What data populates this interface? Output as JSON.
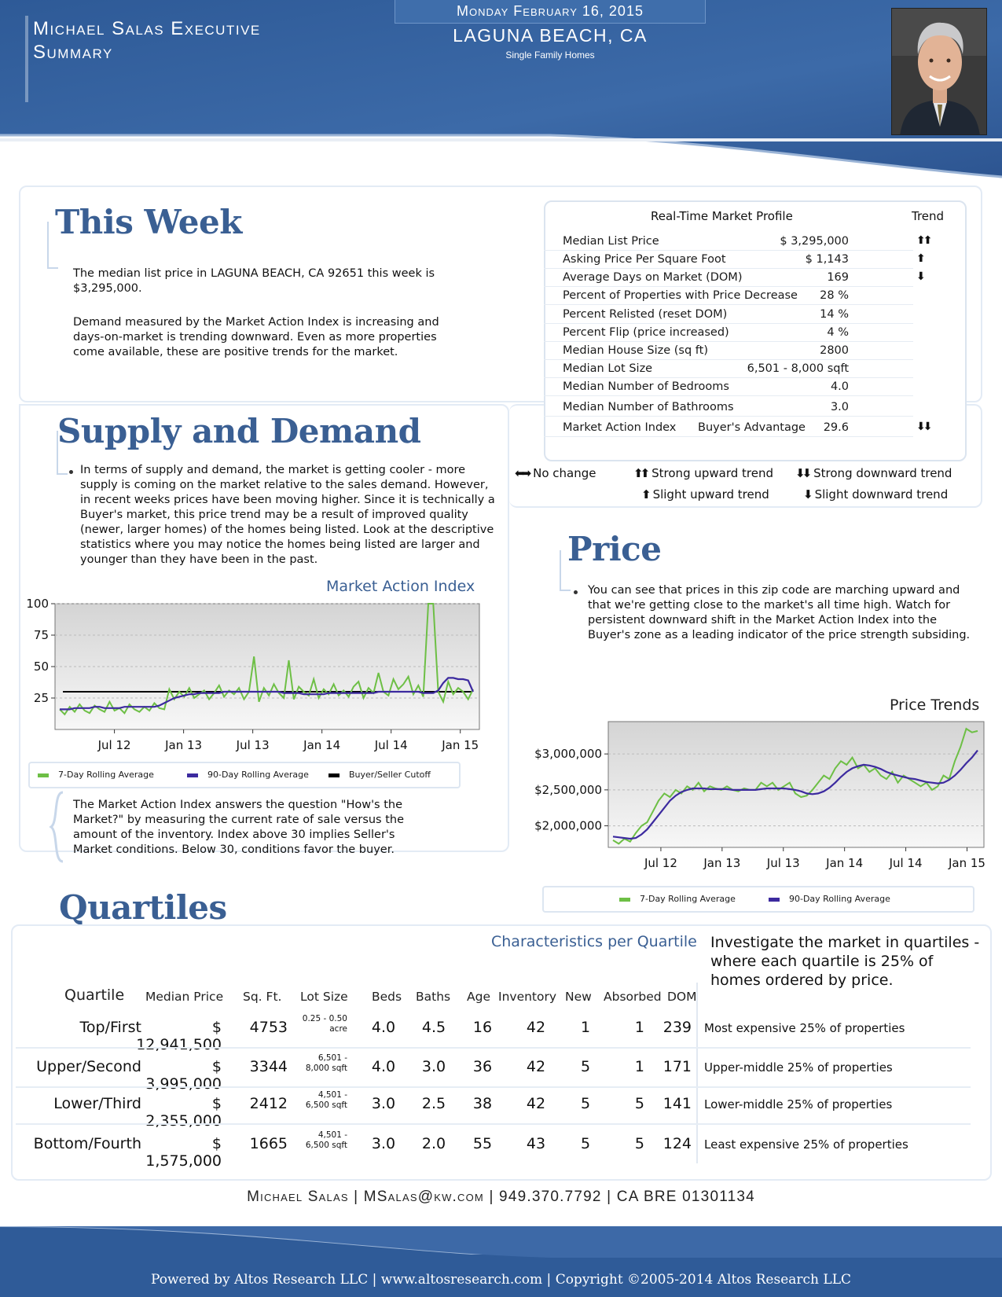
{
  "header": {
    "exec_title_line1": "Michael Salas Executive",
    "exec_title_line2": "Summary",
    "date": "Monday February 16, 2015",
    "location": "LAGUNA BEACH, CA",
    "property_type": "Single Family Homes"
  },
  "this_week": {
    "title": "This Week",
    "para1": "The median list price in LAGUNA BEACH, CA 92651 this week is $3,295,000.",
    "para2": "Demand measured by the Market Action Index is increasing and days-on-market is trending downward. Even as more properties come available, these are positive trends for the market."
  },
  "market_profile": {
    "heading": "Real-Time Market Profile",
    "trend_heading": "Trend",
    "rows": [
      {
        "label": "Median List Price",
        "value": "$ 3,295,000",
        "trend": "⬆⬆"
      },
      {
        "label": "Asking Price Per Square Foot",
        "value": "$ 1,143",
        "trend": "⬆"
      },
      {
        "label": "Average Days on Market (DOM)",
        "value": "169",
        "trend": "⬇"
      },
      {
        "label": "Percent of Properties with Price Decrease",
        "value": "28 %",
        "trend": ""
      },
      {
        "label": "Percent Relisted (reset DOM)",
        "value": "14 %",
        "trend": ""
      },
      {
        "label": "Percent Flip (price increased)",
        "value": "4 %",
        "trend": ""
      },
      {
        "label": "Median House Size (sq ft)",
        "value": "2800",
        "trend": ""
      },
      {
        "label": "Median Lot Size",
        "value": "6,501 - 8,000 sqft",
        "trend": ""
      },
      {
        "label": "Median Number of Bedrooms",
        "value": "4.0",
        "trend": ""
      },
      {
        "label": "Median Number of Bathrooms",
        "value": "3.0",
        "trend": ""
      },
      {
        "label": "Market Action Index",
        "label2": "Buyer's Advantage",
        "value": "29.6",
        "trend": "⬇⬇"
      }
    ]
  },
  "trend_legend": {
    "no_change": {
      "sym": "⬅➡",
      "label": "No change"
    },
    "strong_up": {
      "sym": "⬆⬆",
      "label": "Strong upward trend"
    },
    "strong_down": {
      "sym": "⬇⬇",
      "label": "Strong downward trend"
    },
    "slight_up": {
      "sym": "⬆",
      "label": "Slight upward trend"
    },
    "slight_down": {
      "sym": "⬇",
      "label": "Slight downward trend"
    }
  },
  "supply_demand": {
    "title": "Supply and Demand",
    "text": "In terms of supply and demand, the market is getting cooler - more supply is coming on the market relative to the sales demand. However, in recent weeks prices have been moving higher. Since it is technically a Buyer's market, this price trend may be a result of improved quality (newer, larger homes) of the homes being listed. Look at the descriptive statistics where you may notice the homes being listed are larger and younger than they have been in the past.",
    "note": "The Market Action Index answers the question \"How's the Market?\" by measuring the current rate of sale versus the amount of the inventory.  Index above 30 implies Seller's Market conditions. Below 30, conditions favor the buyer."
  },
  "price": {
    "title": "Price",
    "text": "You can see that prices in this zip code are marching upward and that we're getting close to the market's all time high. Watch for persistent downward shift in the Market Action Index into the Buyer's zone as a leading indicator of the price strength subsiding."
  },
  "colors": {
    "green": "#6dbf45",
    "purple": "#3c2a9f",
    "blue": "#3a5f93"
  },
  "chart_data": [
    {
      "type": "line",
      "title": "Market Action Index",
      "x_ticks": [
        "Jul 12",
        "Jan 13",
        "Jul 13",
        "Jan 14",
        "Jul 14",
        "Jan 15"
      ],
      "y_ticks": [
        "100",
        "75",
        "50",
        "25"
      ],
      "ylim": [
        0,
        100
      ],
      "cutoff": 30,
      "legend": [
        "7-Day Rolling Average",
        "90-Day Rolling Average",
        "Buyer/Seller Cutoff"
      ],
      "series": [
        {
          "name": "7-Day Rolling Average",
          "color": "#6dbf45",
          "values": [
            16,
            12,
            18,
            14,
            20,
            15,
            13,
            19,
            16,
            14,
            22,
            15,
            17,
            13,
            20,
            16,
            14,
            18,
            15,
            21,
            17,
            16,
            32,
            24,
            30,
            26,
            33,
            25,
            28,
            31,
            24,
            29,
            35,
            26,
            31,
            28,
            33,
            24,
            30,
            58,
            22,
            33,
            27,
            36,
            29,
            25,
            55,
            24,
            34,
            30,
            27,
            40,
            25,
            32,
            28,
            36,
            27,
            31,
            26,
            34,
            38,
            25,
            33,
            29,
            45,
            30,
            27,
            40,
            32,
            36,
            42,
            28,
            35,
            26,
            100,
            100,
            30,
            22,
            38,
            28,
            33,
            30,
            24,
            32
          ]
        },
        {
          "name": "90-Day Rolling Average",
          "color": "#3c2a9f",
          "values": [
            16,
            16,
            16,
            17,
            17,
            17,
            17,
            18,
            18,
            17,
            17,
            17,
            17,
            18,
            18,
            18,
            18,
            18,
            18,
            18,
            19,
            21,
            23,
            25,
            26,
            27,
            28,
            28,
            29,
            29,
            29,
            29,
            29,
            30,
            30,
            30,
            30,
            30,
            30,
            30,
            30,
            30,
            30,
            30,
            30,
            29,
            29,
            29,
            29,
            28,
            28,
            28,
            28,
            28,
            29,
            29,
            29,
            29,
            29,
            29,
            29,
            29,
            29,
            29,
            30,
            30,
            30,
            30,
            30,
            30,
            30,
            30,
            30,
            29,
            29,
            29,
            31,
            37,
            41,
            41,
            40,
            40,
            39,
            30
          ]
        }
      ]
    },
    {
      "type": "line",
      "title": "Price Trends",
      "x_ticks": [
        "Jul 12",
        "Jan 13",
        "Jul 13",
        "Jan 14",
        "Jul 14",
        "Jan 15"
      ],
      "y_ticks": [
        "$3,000,000",
        "$2,500,000",
        "$2,000,000"
      ],
      "ylim": [
        1700000,
        3450000
      ],
      "legend": [
        "7-Day Rolling Average",
        "90-Day Rolling Average"
      ],
      "series": [
        {
          "name": "7-Day Rolling Average",
          "color": "#6dbf45",
          "values": [
            1800000,
            1750000,
            1820000,
            1780000,
            1900000,
            2000000,
            2050000,
            2200000,
            2350000,
            2450000,
            2400000,
            2500000,
            2450000,
            2550000,
            2500000,
            2600000,
            2480000,
            2550000,
            2520000,
            2500000,
            2550000,
            2500000,
            2480000,
            2520000,
            2500000,
            2500000,
            2600000,
            2550000,
            2600000,
            2500000,
            2550000,
            2600000,
            2450000,
            2400000,
            2420000,
            2500000,
            2600000,
            2700000,
            2650000,
            2800000,
            2900000,
            2850000,
            2950000,
            2800000,
            2850000,
            2750000,
            2800000,
            2700000,
            2650000,
            2750000,
            2600000,
            2700000,
            2650000,
            2600000,
            2550000,
            2600000,
            2500000,
            2550000,
            2700000,
            2650000,
            2900000,
            3100000,
            3350000,
            3300000,
            3320000
          ]
        },
        {
          "name": "90-Day Rolling Average",
          "color": "#3c2a9f",
          "values": [
            1850000,
            1840000,
            1830000,
            1820000,
            1830000,
            1880000,
            1950000,
            2050000,
            2150000,
            2250000,
            2350000,
            2420000,
            2470000,
            2500000,
            2520000,
            2520000,
            2520000,
            2510000,
            2510000,
            2510000,
            2510000,
            2500000,
            2500000,
            2500000,
            2500000,
            2500000,
            2510000,
            2520000,
            2520000,
            2520000,
            2520000,
            2510000,
            2500000,
            2480000,
            2450000,
            2440000,
            2450000,
            2480000,
            2530000,
            2600000,
            2680000,
            2750000,
            2800000,
            2830000,
            2850000,
            2840000,
            2820000,
            2790000,
            2750000,
            2720000,
            2700000,
            2680000,
            2660000,
            2650000,
            2630000,
            2610000,
            2600000,
            2590000,
            2600000,
            2640000,
            2700000,
            2780000,
            2870000,
            2950000,
            3050000
          ]
        }
      ]
    }
  ],
  "quartiles": {
    "title": "Quartiles",
    "subtitle": "Characteristics per Quartile",
    "intro": "Investigate the market in quartiles - where each quartile is 25% of homes ordered by price.",
    "headers": {
      "quartile": "Quartile",
      "price": "Median Price",
      "sqft": "Sq. Ft.",
      "lot": "Lot Size",
      "beds": "Beds",
      "baths": "Baths",
      "age": "Age",
      "inventory": "Inventory",
      "new": "New",
      "absorbed": "Absorbed",
      "dom": "DOM"
    },
    "rows": [
      {
        "quartile": "Top/First",
        "price": "$ 12,941,500",
        "sqft": "4753",
        "lot1": "0.25 - 0.50",
        "lot2": "acre",
        "beds": "4.0",
        "baths": "4.5",
        "age": "16",
        "inventory": "42",
        "new": "1",
        "absorbed": "1",
        "dom": "239",
        "desc": "Most expensive 25% of properties"
      },
      {
        "quartile": "Upper/Second",
        "price": "$ 3,995,000",
        "sqft": "3344",
        "lot1": "6,501 -",
        "lot2": "8,000 sqft",
        "beds": "4.0",
        "baths": "3.0",
        "age": "36",
        "inventory": "42",
        "new": "5",
        "absorbed": "1",
        "dom": "171",
        "desc": "Upper-middle 25% of properties"
      },
      {
        "quartile": "Lower/Third",
        "price": "$ 2,355,000",
        "sqft": "2412",
        "lot1": "4,501 -",
        "lot2": "6,500 sqft",
        "beds": "3.0",
        "baths": "2.5",
        "age": "38",
        "inventory": "42",
        "new": "5",
        "absorbed": "5",
        "dom": "141",
        "desc": "Lower-middle 25% of properties"
      },
      {
        "quartile": "Bottom/Fourth",
        "price": "$ 1,575,000",
        "sqft": "1665",
        "lot1": "4,501 -",
        "lot2": "6,500 sqft",
        "beds": "3.0",
        "baths": "2.0",
        "age": "55",
        "inventory": "43",
        "new": "5",
        "absorbed": "5",
        "dom": "124",
        "desc": "Least expensive 25% of properties"
      }
    ]
  },
  "contact": "Michael Salas | MSalas@kw.com | 949.370.7792 | CA BRE 01301134",
  "footer": "Powered by Altos Research LLC | www.altosresearch.com | Copyright ©2005-2014 Altos Research LLC"
}
